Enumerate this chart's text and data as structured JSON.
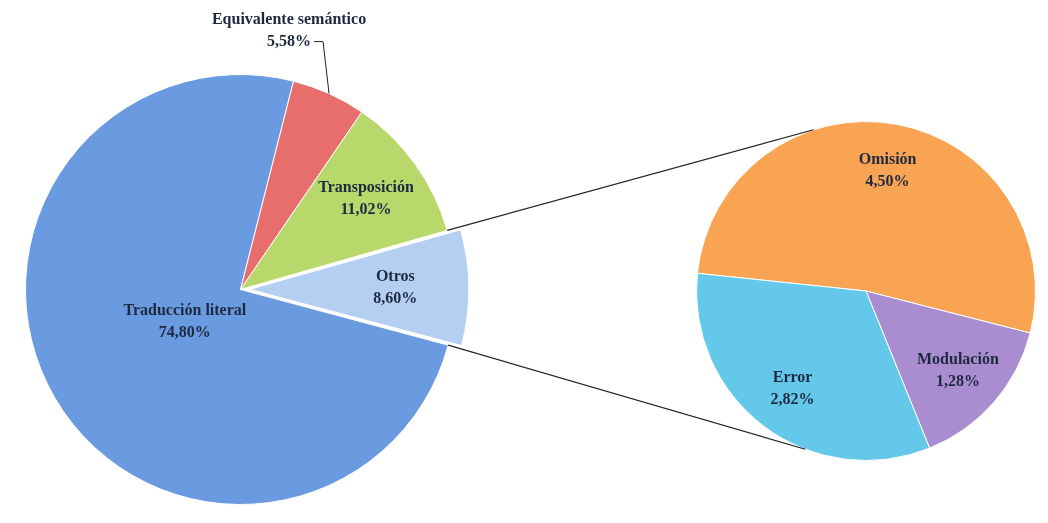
{
  "chart_data": [
    {
      "type": "pie",
      "categories": [
        "Traducción literal",
        "Equivalente semántico",
        "Transposición",
        "Otros"
      ],
      "values": [
        74.8,
        5.58,
        11.02,
        8.6
      ],
      "colors": [
        "#6a9be0",
        "#e86e6e",
        "#b9d86c",
        "#b5cff2"
      ],
      "value_labels": [
        "74,80%",
        "5,58%",
        "11,02%",
        "8,60%"
      ]
    },
    {
      "type": "pie",
      "categories": [
        "Omisión",
        "Modulación",
        "Error"
      ],
      "values": [
        4.5,
        1.28,
        2.82
      ],
      "colors": [
        "#f9a453",
        "#a98dd0",
        "#63c8ea"
      ],
      "value_labels": [
        "4,50%",
        "1,28%",
        "2,82%"
      ]
    }
  ]
}
